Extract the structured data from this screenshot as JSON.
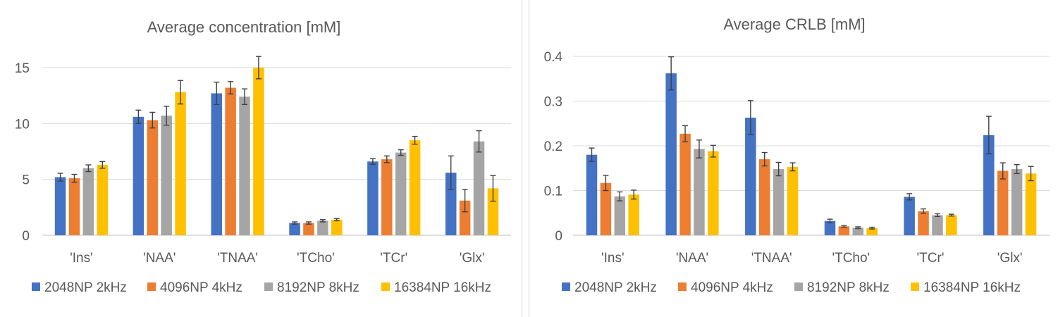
{
  "chart_data": [
    {
      "type": "bar",
      "title": "Average concentration [mM]",
      "xlabel": "",
      "ylabel": "",
      "categories": [
        "'Ins'",
        "'NAA'",
        "'TNAA'",
        "'TCho'",
        "'TCr'",
        "'Glx'"
      ],
      "ylim": [
        0,
        17
      ],
      "yticks": [
        0,
        5,
        10,
        15
      ],
      "ytick_labels": [
        "0",
        "5",
        "10",
        "15"
      ],
      "grid": true,
      "legend_position": "bottom",
      "series": [
        {
          "name": "2048NP 2kHz",
          "color": "#4472C4",
          "values": [
            5.2,
            10.6,
            12.7,
            1.1,
            6.6,
            5.6
          ],
          "errors": [
            0.35,
            0.6,
            1.0,
            0.1,
            0.25,
            1.5
          ]
        },
        {
          "name": "4096NP 4kHz",
          "color": "#ED7D31",
          "values": [
            5.1,
            10.3,
            13.2,
            1.1,
            6.8,
            3.1
          ],
          "errors": [
            0.35,
            0.7,
            0.55,
            0.1,
            0.3,
            1.0
          ]
        },
        {
          "name": "8192NP 8kHz",
          "color": "#A5A5A5",
          "values": [
            6.0,
            10.7,
            12.4,
            1.3,
            7.4,
            8.4
          ],
          "errors": [
            0.3,
            0.85,
            0.7,
            0.1,
            0.25,
            0.95
          ]
        },
        {
          "name": "16384NP 16kHz",
          "color": "#FFC000",
          "values": [
            6.3,
            12.8,
            15.0,
            1.4,
            8.5,
            4.2
          ],
          "errors": [
            0.3,
            1.05,
            1.0,
            0.1,
            0.35,
            1.15
          ]
        }
      ]
    },
    {
      "type": "bar",
      "title": "Average CRLB [mM]",
      "xlabel": "",
      "ylabel": "",
      "categories": [
        "'Ins'",
        "'NAA'",
        "'TNAA'",
        "'TCho'",
        "'TCr'",
        "'Glx'"
      ],
      "ylim": [
        0,
        0.4
      ],
      "yticks": [
        0,
        0.1,
        0.2,
        0.3,
        0.4
      ],
      "ytick_labels": [
        "0",
        "0.1",
        "0.2",
        "0.3",
        "0.4"
      ],
      "grid": true,
      "legend_position": "bottom",
      "series": [
        {
          "name": "2048NP 2kHz",
          "color": "#4472C4",
          "values": [
            0.18,
            0.362,
            0.263,
            0.032,
            0.086,
            0.224
          ],
          "errors": [
            0.015,
            0.037,
            0.038,
            0.004,
            0.007,
            0.042
          ]
        },
        {
          "name": "4096NP 4kHz",
          "color": "#ED7D31",
          "values": [
            0.117,
            0.227,
            0.17,
            0.02,
            0.054,
            0.144
          ],
          "errors": [
            0.017,
            0.018,
            0.015,
            0.002,
            0.005,
            0.018
          ]
        },
        {
          "name": "8192NP 8kHz",
          "color": "#A5A5A5",
          "values": [
            0.087,
            0.193,
            0.148,
            0.017,
            0.045,
            0.148
          ],
          "errors": [
            0.01,
            0.02,
            0.015,
            0.002,
            0.003,
            0.01
          ]
        },
        {
          "name": "16384NP 16kHz",
          "color": "#FFC000",
          "values": [
            0.091,
            0.188,
            0.153,
            0.016,
            0.045,
            0.138
          ],
          "errors": [
            0.01,
            0.013,
            0.009,
            0.002,
            0.002,
            0.016
          ]
        }
      ]
    }
  ]
}
